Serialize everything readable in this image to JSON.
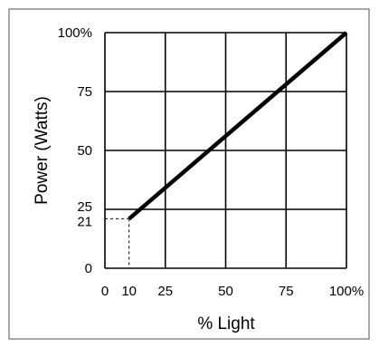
{
  "chart_data": {
    "type": "line",
    "title": "",
    "xlabel": "% Light",
    "ylabel": "Power (Watts)",
    "xlim": [
      0,
      100
    ],
    "ylim": [
      0,
      100
    ],
    "grid": true,
    "legend": "none",
    "x_ticks": [
      {
        "value": 0,
        "label": "0"
      },
      {
        "value": 10,
        "label": "10"
      },
      {
        "value": 25,
        "label": "25"
      },
      {
        "value": 50,
        "label": "50"
      },
      {
        "value": 75,
        "label": "75"
      },
      {
        "value": 100,
        "label": "100%"
      }
    ],
    "y_ticks": [
      {
        "value": 0,
        "label": "0"
      },
      {
        "value": 21,
        "label": "21"
      },
      {
        "value": 25,
        "label": "25"
      },
      {
        "value": 50,
        "label": "50"
      },
      {
        "value": 75,
        "label": "75"
      },
      {
        "value": 100,
        "label": "100%"
      }
    ],
    "x_gridlines": [
      0,
      25,
      50,
      75,
      100
    ],
    "y_gridlines": [
      0,
      25,
      50,
      75,
      100
    ],
    "series": [
      {
        "x": [
          10,
          100
        ],
        "y": [
          21,
          100
        ],
        "color": "#000000"
      }
    ],
    "reference_point": {
      "x": 10,
      "y": 21
    }
  }
}
